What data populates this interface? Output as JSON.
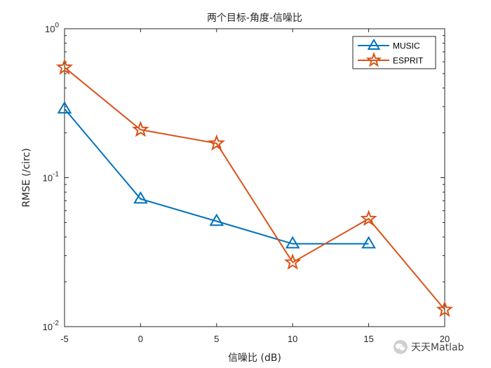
{
  "chart_data": {
    "type": "line",
    "title": "两个目标-角度-信噪比",
    "xlabel": "信噪比 (dB)",
    "ylabel": "RMSE (/circ)",
    "yscale": "log",
    "xlim": [
      -5,
      20
    ],
    "ylim": [
      0.01,
      1
    ],
    "xticks": [
      "-5",
      "0",
      "5",
      "10",
      "15",
      "20"
    ],
    "yticks": [
      {
        "base": "10",
        "exp": "0",
        "value": 1
      },
      {
        "base": "10",
        "exp": "-1",
        "value": 0.1
      },
      {
        "base": "10",
        "exp": "-2",
        "value": 0.01
      }
    ],
    "legend_position": "top-right",
    "grid": false,
    "series": [
      {
        "name": "MUSIC",
        "color": "#0072BD",
        "marker": "triangle",
        "x": [
          -5,
          0,
          5,
          10,
          15
        ],
        "y": [
          0.29,
          0.072,
          0.051,
          0.036,
          0.036
        ]
      },
      {
        "name": "ESPRIT",
        "color": "#D95319",
        "marker": "star",
        "x": [
          -5,
          0,
          5,
          10,
          15,
          20
        ],
        "y": [
          0.55,
          0.21,
          0.17,
          0.027,
          0.053,
          0.013
        ]
      }
    ]
  },
  "watermark": {
    "text": "天天Matlab",
    "icon": "wechat-icon"
  }
}
